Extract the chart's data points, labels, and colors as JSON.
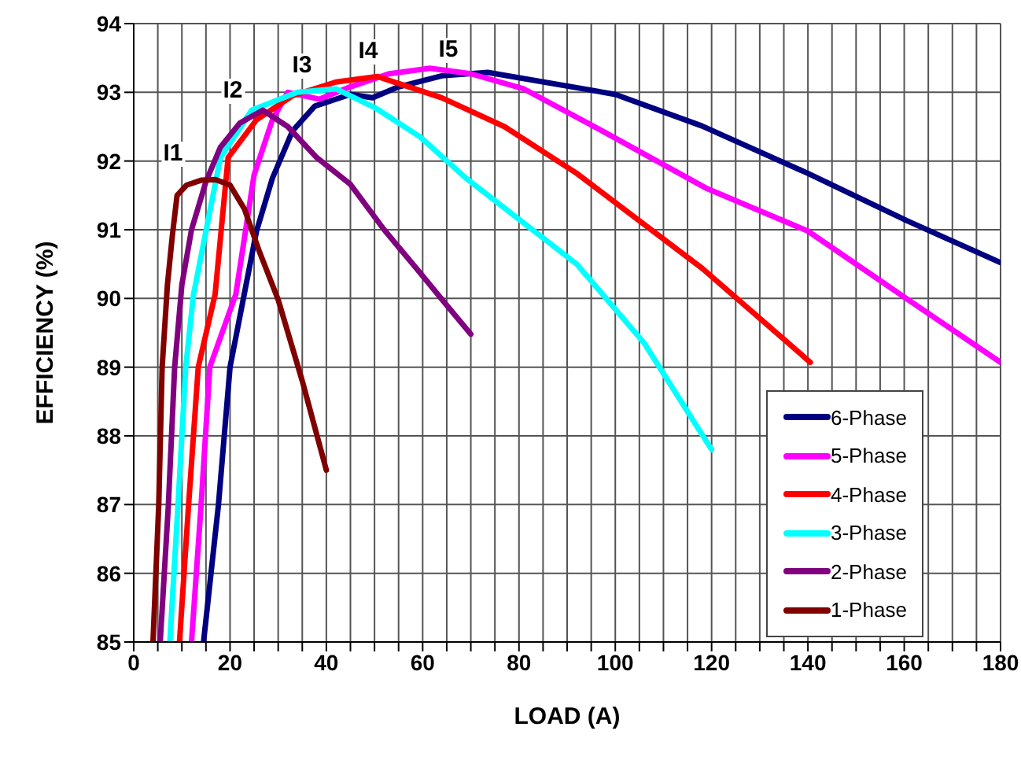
{
  "chart_data": {
    "type": "line",
    "xlabel": "LOAD (A)",
    "ylabel": "EFFICIENCY (%)",
    "xlim": [
      0,
      180
    ],
    "ylim": [
      85,
      94
    ],
    "xticks": [
      0,
      {
        "value": 5,
        "label": null
      },
      {
        "value": 10,
        "label": null
      },
      {
        "value": 15,
        "label": null
      },
      20,
      {
        "value": 25,
        "label": null
      },
      {
        "value": 30,
        "label": null
      },
      {
        "value": 35,
        "label": null
      },
      40,
      {
        "value": 45,
        "label": null
      },
      {
        "value": 50,
        "label": null
      },
      {
        "value": 55,
        "label": null
      },
      60,
      {
        "value": 65,
        "label": null
      },
      {
        "value": 70,
        "label": null
      },
      {
        "value": 75,
        "label": null
      },
      80,
      {
        "value": 85,
        "label": null
      },
      {
        "value": 90,
        "label": null
      },
      {
        "value": 95,
        "label": null
      },
      100,
      {
        "value": 105,
        "label": null
      },
      {
        "value": 110,
        "label": null
      },
      {
        "value": 115,
        "label": null
      },
      120,
      {
        "value": 125,
        "label": null
      },
      {
        "value": 130,
        "label": null
      },
      {
        "value": 135,
        "label": null
      },
      140,
      {
        "value": 145,
        "label": null
      },
      {
        "value": 150,
        "label": null
      },
      {
        "value": 155,
        "label": null
      },
      160,
      {
        "value": 165,
        "label": null
      },
      {
        "value": 170,
        "label": null
      },
      {
        "value": 175,
        "label": null
      },
      180
    ],
    "yticks": [
      85,
      86,
      87,
      88,
      89,
      90,
      91,
      92,
      93,
      94
    ],
    "grid": true,
    "legend": "bottom right",
    "series": [
      {
        "name": "6-Phase",
        "color": "#000080",
        "x": [
          14.5,
          17.6,
          20,
          25.5,
          28.8,
          33,
          37.6,
          45,
          49.6,
          55,
          64,
          73.5,
          100,
          118,
          140,
          160.6,
          180
        ],
        "values": [
          85,
          87,
          89,
          90.98,
          91.75,
          92.44,
          92.8,
          92.97,
          92.92,
          93.08,
          93.24,
          93.29,
          92.97,
          92.51,
          91.82,
          91.13,
          90.52
        ]
      },
      {
        "name": "5-Phase",
        "color": "#ff00ff",
        "x": [
          12,
          14,
          15.8,
          21.2,
          25,
          28.8,
          32,
          38.6,
          45,
          53,
          61.5,
          70,
          81,
          97.5,
          119,
          140,
          160.6,
          180
        ],
        "values": [
          85,
          87,
          89,
          90.06,
          91.8,
          92.6,
          93,
          92.9,
          93.08,
          93.27,
          93.35,
          93.27,
          93.05,
          92.43,
          91.6,
          90.98,
          89.99,
          89.07
        ]
      },
      {
        "name": "4-Phase",
        "color": "#ff0000",
        "x": [
          9.5,
          11.4,
          13.4,
          16.9,
          19.6,
          25.5,
          33,
          42,
          50.6,
          64,
          77,
          92,
          118,
          140.5
        ],
        "values": [
          85,
          87,
          89,
          90.06,
          92.05,
          92.6,
          92.95,
          93.15,
          93.23,
          92.92,
          92.5,
          91.82,
          90.44,
          89.07
        ]
      },
      {
        "name": "3-Phase",
        "color": "#00ffff",
        "x": [
          7.5,
          9.2,
          10.8,
          12.4,
          18,
          24.5,
          34,
          42,
          50,
          59.5,
          69,
          92,
          106,
          120
        ],
        "values": [
          85,
          87,
          89,
          90.05,
          92.05,
          92.74,
          93,
          93.05,
          92.78,
          92.35,
          91.75,
          90.5,
          89.35,
          87.8
        ]
      },
      {
        "name": "2-Phase",
        "color": "#800080",
        "x": [
          5.5,
          7.2,
          8.5,
          10,
          12,
          15,
          18,
          22,
          26.8,
          32,
          38,
          45,
          52,
          59.5,
          65,
          70
        ],
        "values": [
          85,
          87,
          89,
          90.2,
          91,
          91.7,
          92.2,
          92.55,
          92.74,
          92.5,
          92.05,
          91.66,
          91,
          90.37,
          89.9,
          89.48
        ]
      },
      {
        "name": "1-Phase",
        "color": "#800000",
        "x": [
          4,
          5.2,
          5.9,
          7,
          8,
          9,
          11,
          14,
          17,
          20,
          23,
          26,
          30,
          35,
          40
        ],
        "values": [
          85,
          87,
          89,
          90.2,
          90.9,
          91.5,
          91.65,
          91.72,
          91.73,
          91.65,
          91.3,
          90.7,
          89.98,
          88.8,
          87.5
        ]
      }
    ],
    "annotations": [
      "I1",
      "I2",
      "I3",
      "I4",
      "I5"
    ]
  }
}
